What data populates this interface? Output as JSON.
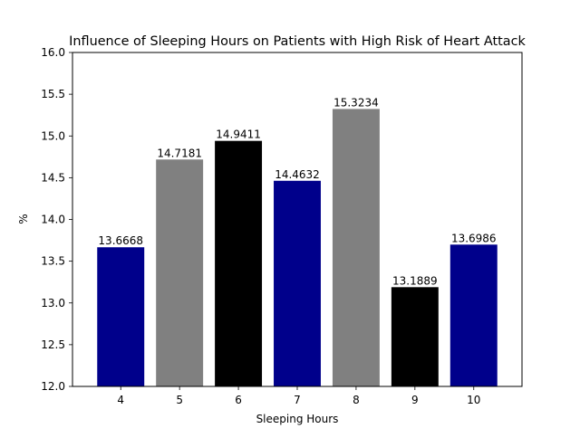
{
  "chart_data": {
    "type": "bar",
    "title": "Influence of Sleeping Hours on Patients with High Risk of Heart Attack",
    "xlabel": "Sleeping Hours",
    "ylabel": "%",
    "categories": [
      "4",
      "5",
      "6",
      "7",
      "8",
      "9",
      "10"
    ],
    "values": [
      13.6668,
      14.7181,
      14.9411,
      14.4632,
      15.3234,
      13.1889,
      13.6986
    ],
    "data_labels": [
      "13.6668",
      "14.7181",
      "14.9411",
      "14.4632",
      "15.3234",
      "13.1889",
      "13.6986"
    ],
    "bar_colors": [
      "#00008b",
      "#808080",
      "#000000",
      "#00008b",
      "#808080",
      "#000000",
      "#00008b"
    ],
    "ylim": [
      12.0,
      16.0
    ],
    "yticks": [
      "12.0",
      "12.5",
      "13.0",
      "13.5",
      "14.0",
      "14.5",
      "15.0",
      "15.5",
      "16.0"
    ],
    "grid": false,
    "legend": "none"
  }
}
